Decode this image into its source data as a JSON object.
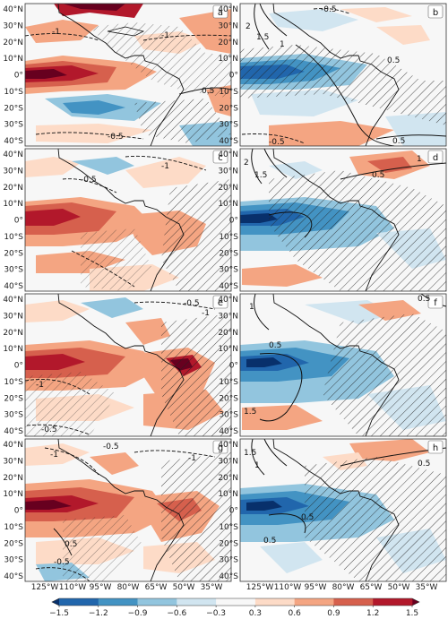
{
  "figure": {
    "panels": [
      {
        "label": "a",
        "contours": [
          {
            "value": "-1"
          },
          {
            "value": "-1"
          },
          {
            "value": "0.5"
          },
          {
            "value": "-0.5"
          }
        ]
      },
      {
        "label": "b",
        "contours": [
          {
            "value": "-0.5"
          },
          {
            "value": "2"
          },
          {
            "value": "1.5"
          },
          {
            "value": "1"
          },
          {
            "value": "0.5"
          },
          {
            "value": "-0.5"
          },
          {
            "value": "0.5"
          }
        ]
      },
      {
        "label": "c",
        "contours": [
          {
            "value": "-1"
          },
          {
            "value": "-0.5"
          }
        ]
      },
      {
        "label": "d",
        "contours": [
          {
            "value": "2"
          },
          {
            "value": "1.5"
          },
          {
            "value": "1"
          },
          {
            "value": "0.5"
          }
        ]
      },
      {
        "label": "e",
        "contours": [
          {
            "value": "-0.5"
          },
          {
            "value": "-1"
          },
          {
            "value": "-1"
          },
          {
            "value": "-0.5"
          }
        ]
      },
      {
        "label": "f",
        "contours": [
          {
            "value": "0.5"
          },
          {
            "value": "1.5"
          },
          {
            "value": "1"
          },
          {
            "value": "0.5"
          }
        ]
      },
      {
        "label": "g",
        "contours": [
          {
            "value": "-0.5"
          },
          {
            "value": "-1"
          },
          {
            "value": "-1"
          },
          {
            "value": "-0.5"
          },
          {
            "value": "0.5"
          }
        ]
      },
      {
        "label": "h",
        "contours": [
          {
            "value": "1.5"
          },
          {
            "value": "1"
          },
          {
            "value": "0.5"
          },
          {
            "value": "0.5"
          },
          {
            "value": "0.5"
          }
        ]
      }
    ],
    "lat_ticks": [
      "40°N",
      "30°N",
      "20°N",
      "10°N",
      "0°",
      "10°S",
      "20°S",
      "30°S",
      "40°S"
    ],
    "lon_ticks": [
      "125°W",
      "110°W",
      "95°W",
      "80°W",
      "65°W",
      "50°W",
      "35°W"
    ],
    "colorbar": {
      "ticks": [
        "−1.5",
        "−1.2",
        "−0.9",
        "−0.6",
        "−0.3",
        "0.3",
        "0.6",
        "0.9",
        "1.2",
        "1.5"
      ],
      "colors": [
        "#08306b",
        "#2166ac",
        "#4393c3",
        "#92c5de",
        "#d1e5f0",
        "#f7f7f7",
        "#fddbc7",
        "#f4a582",
        "#d6604d",
        "#b2182b",
        "#67001f"
      ]
    }
  }
}
